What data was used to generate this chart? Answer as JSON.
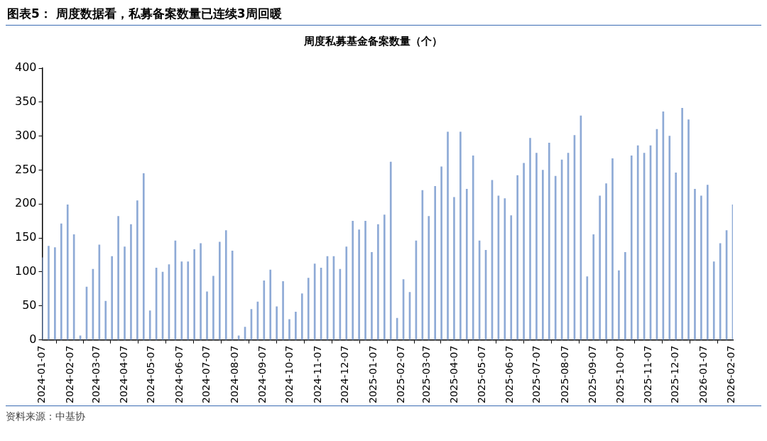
{
  "chart_data": {
    "type": "bar",
    "title": "周度私募基金备案数量（个）",
    "subtitle": "图表5：  周度数据看，私募备案数量已连续3周回暖",
    "annotations": [
      "资料来源：中基协"
    ],
    "x": [
      "2024-01-07",
      "2024-01-14",
      "2024-01-21",
      "2024-01-28",
      "2024-02-04",
      "2024-02-11",
      "2024-02-18",
      "2024-02-25",
      "2024-03-03",
      "2024-03-10",
      "2024-03-17",
      "2024-03-24",
      "2024-03-31",
      "2024-04-07",
      "2024-04-14",
      "2024-04-21",
      "2024-04-28",
      "2024-05-05",
      "2024-05-12",
      "2024-05-19",
      "2024-05-26",
      "2024-06-02",
      "2024-06-09",
      "2024-06-16",
      "2024-06-23",
      "2024-06-30",
      "2024-07-07",
      "2024-07-14",
      "2024-07-21",
      "2024-07-28",
      "2024-08-04",
      "2024-08-11",
      "2024-08-18",
      "2024-08-25",
      "2024-09-01",
      "2024-09-08",
      "2024-09-15",
      "2024-09-22",
      "2024-09-29",
      "2024-10-06",
      "2024-10-13",
      "2024-10-20",
      "2024-10-27",
      "2024-11-03",
      "2024-11-10",
      "2024-11-17",
      "2024-11-24",
      "2024-12-01",
      "2024-12-08",
      "2024-12-15",
      "2024-12-22",
      "2024-12-29",
      "2025-01-05",
      "2025-01-12",
      "2025-01-19",
      "2025-01-26",
      "2025-02-02",
      "2025-02-09",
      "2025-02-16",
      "2025-02-23",
      "2025-03-02",
      "2025-03-09",
      "2025-03-16",
      "2025-03-23",
      "2025-03-30",
      "2025-04-06",
      "2025-04-13",
      "2025-04-20",
      "2025-04-27",
      "2025-05-04",
      "2025-05-11",
      "2025-05-18",
      "2025-05-25",
      "2025-06-01",
      "2025-06-08",
      "2025-06-15",
      "2025-06-22",
      "2025-06-29",
      "2025-07-06",
      "2025-07-13",
      "2025-07-20",
      "2025-07-27",
      "2025-08-03",
      "2025-08-10",
      "2025-08-17",
      "2025-08-24",
      "2025-08-31",
      "2025-09-07",
      "2025-09-14",
      "2025-09-21",
      "2025-09-28",
      "2025-10-05",
      "2025-10-12",
      "2025-10-19",
      "2025-10-26",
      "2025-11-02",
      "2025-11-09",
      "2025-11-16",
      "2025-11-23",
      "2025-11-30",
      "2025-12-07",
      "2025-12-14",
      "2025-12-21",
      "2025-12-28",
      "2026-01-04",
      "2026-01-11",
      "2026-01-18",
      "2026-01-25",
      "2026-02-01",
      "2026-02-08"
    ],
    "values": [
      121,
      138,
      136,
      171,
      199,
      155,
      6,
      78,
      104,
      140,
      57,
      123,
      182,
      137,
      170,
      205,
      245,
      43,
      106,
      100,
      111,
      146,
      115,
      115,
      133,
      142,
      71,
      94,
      144,
      161,
      131,
      6,
      19,
      45,
      56,
      87,
      103,
      49,
      86,
      30,
      41,
      68,
      91,
      112,
      106,
      123,
      123,
      104,
      137,
      175,
      162,
      175,
      129,
      170,
      184,
      262,
      32,
      89,
      70,
      146,
      220,
      182,
      226,
      255,
      306,
      210,
      306,
      222,
      271,
      146,
      132,
      235,
      212,
      208,
      183,
      242,
      260,
      297,
      275,
      250,
      290,
      241,
      265,
      275,
      301,
      330,
      93,
      155,
      212,
      230,
      267,
      102,
      129,
      271,
      286,
      275,
      286,
      310,
      336,
      300,
      246,
      341,
      324,
      222,
      212,
      228,
      115,
      142,
      161,
      199
    ],
    "color": "#8eaad6",
    "xlim": [
      "2024-01-07",
      "2026-02-08"
    ],
    "xticks": [
      "2024-01-07",
      "2024-02-07",
      "2024-03-07",
      "2024-04-07",
      "2024-05-07",
      "2024-06-07",
      "2024-07-07",
      "2024-08-07",
      "2024-09-07",
      "2024-10-07",
      "2024-11-07",
      "2024-12-07",
      "2025-01-07",
      "2025-02-07",
      "2025-03-07",
      "2025-04-07",
      "2025-05-07",
      "2025-06-07",
      "2025-07-07",
      "2025-08-07",
      "2025-09-07",
      "2025-10-07",
      "2025-11-07",
      "2025-12-07",
      "2026-01-07",
      "2026-02-07"
    ],
    "ylim": [
      0,
      400
    ],
    "yticks": [
      0,
      50,
      100,
      150,
      200,
      250,
      300,
      350,
      400
    ],
    "grid": false,
    "legend": false
  }
}
